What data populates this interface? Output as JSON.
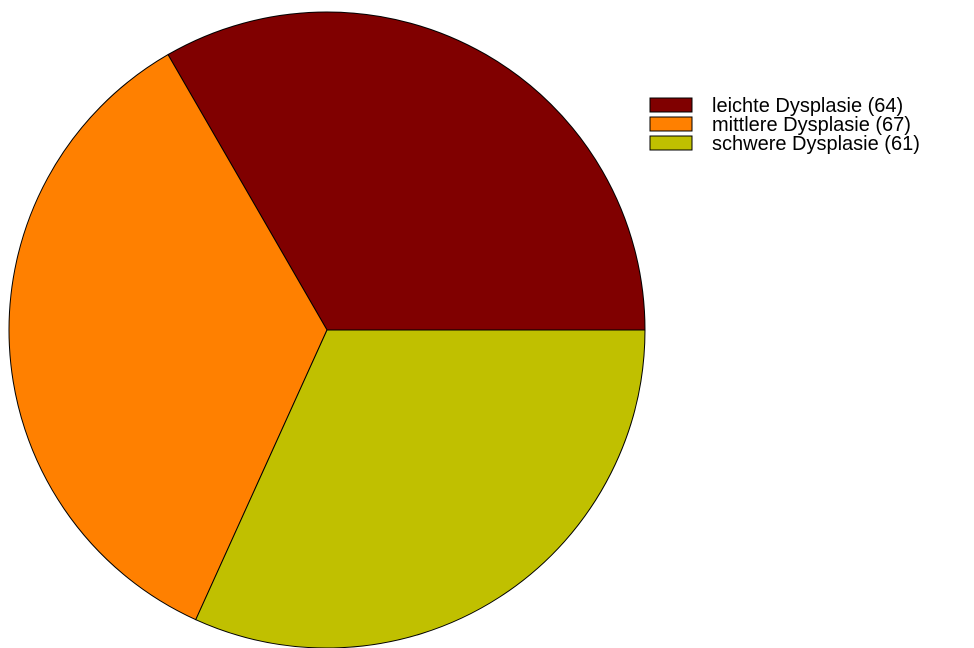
{
  "chart_data": {
    "type": "pie",
    "title": "",
    "start_angle_deg": 0,
    "direction": "counterclockwise",
    "legend_position": "top-right",
    "slices": [
      {
        "label": "leichte Dysplasie (64)",
        "value": 64,
        "color": "#800000"
      },
      {
        "label": "mittlere Dysplasie (67)",
        "value": 67,
        "color": "#ff8000"
      },
      {
        "label": "schwere Dysplasie (61)",
        "value": 61,
        "color": "#c0c000"
      }
    ]
  }
}
